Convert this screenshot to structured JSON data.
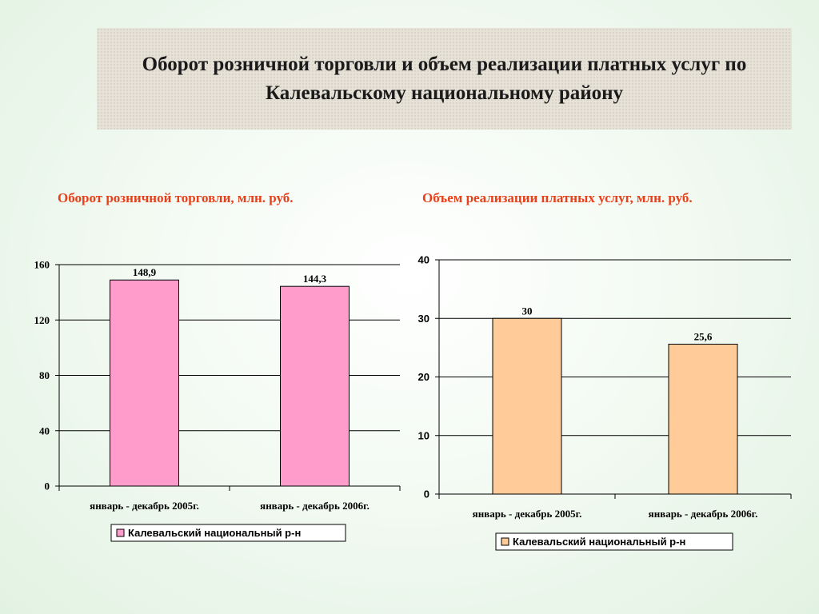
{
  "header": {
    "title": "Оборот розничной торговли и объем реализации платных услуг по Калевальскому национальному району"
  },
  "colors": {
    "title_red": "#e8401a",
    "bar_chart_1": "#ff9ccc",
    "bar_chart_2": "#ffcc99",
    "grid": "#000000"
  },
  "chart_data": [
    {
      "type": "bar",
      "title": "Оборот розничной торговли, млн. руб.",
      "categories": [
        "январь - декабрь 2005г.",
        "январь - декабрь 2006г."
      ],
      "series": [
        {
          "name": "Калевальский  национальный р-н",
          "values": [
            148.9,
            144.3
          ]
        }
      ],
      "data_labels": [
        "148,9",
        "144,3"
      ],
      "ylim": [
        0,
        160
      ],
      "yticks": [
        "0",
        "40",
        "80",
        "120",
        "160"
      ],
      "grid": true,
      "legend": "bottom",
      "bar_color": "#ff9ccc"
    },
    {
      "type": "bar",
      "title": "Объем реализации платных услуг, млн. руб.",
      "categories": [
        "январь - декабрь 2005г.",
        "январь - декабрь 2006г."
      ],
      "series": [
        {
          "name": "Калевальский  национальный р-н",
          "values": [
            30,
            25.6
          ]
        }
      ],
      "data_labels": [
        "30",
        "25,6"
      ],
      "ylim": [
        0,
        40
      ],
      "yticks": [
        "0",
        "10",
        "20",
        "30",
        "40"
      ],
      "grid": true,
      "legend": "bottom",
      "bar_color": "#ffcc99"
    }
  ]
}
